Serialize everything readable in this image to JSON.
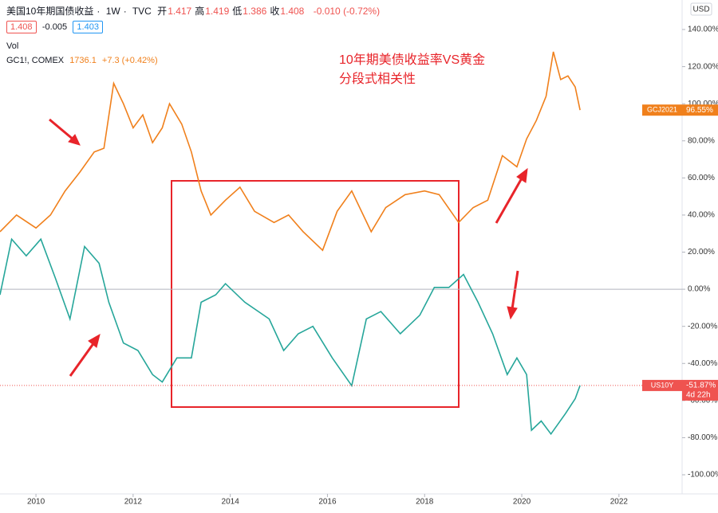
{
  "header": {
    "symbol": "美国10年期国债收益",
    "interval": "1W",
    "source": "TVC",
    "ohlc": [
      {
        "key": "开",
        "value": "1.417"
      },
      {
        "key": "高",
        "value": "1.419"
      },
      {
        "key": "低",
        "value": "1.386"
      },
      {
        "key": "收",
        "value": "1.408"
      }
    ],
    "change": "-0.010 (-0.72%)",
    "bid": "1.408",
    "spread": "-0.005",
    "ask": "1.403",
    "volume": "Vol",
    "compare_symbol": "GC1!, COMEX",
    "compare_price": "1736.1",
    "compare_change": "+7.3 (+0.42%)",
    "currency": "USD"
  },
  "chart_data": {
    "type": "line",
    "annotation": [
      "10年期美债收益率VS黄金",
      "分段式相关性"
    ],
    "xlim": [
      2009.26,
      2023.3
    ],
    "xticks": [
      2010,
      2012,
      2014,
      2016,
      2018,
      2020,
      2022
    ],
    "ylim": [
      -110.3,
      155.9
    ],
    "yticks": [
      {
        "value": -100,
        "label": "-100.00%"
      },
      {
        "value": -80,
        "label": "-80.00%"
      },
      {
        "value": -60,
        "label": "-60.00%"
      },
      {
        "value": -40,
        "label": "-40.00%"
      },
      {
        "value": -20,
        "label": "-20.00%"
      },
      {
        "value": 0,
        "label": "0.00%"
      },
      {
        "value": 20,
        "label": "20.00%"
      },
      {
        "value": 40,
        "label": "40.00%"
      },
      {
        "value": 60,
        "label": "60.00%"
      },
      {
        "value": 80,
        "label": "80.00%"
      },
      {
        "value": 100,
        "label": "100.00%"
      },
      {
        "value": 120,
        "label": "120.00%"
      },
      {
        "value": 140,
        "label": "140.00%"
      }
    ],
    "grid": false,
    "series": [
      {
        "name": "GCJ2021",
        "color": "#f0801c",
        "x": [
          2009.26,
          2009.6,
          2010.0,
          2010.3,
          2010.6,
          2010.9,
          2011.2,
          2011.4,
          2011.6,
          2011.8,
          2012.0,
          2012.2,
          2012.4,
          2012.6,
          2012.75,
          2013.0,
          2013.2,
          2013.4,
          2013.6,
          2013.9,
          2014.2,
          2014.5,
          2014.9,
          2015.2,
          2015.5,
          2015.9,
          2016.2,
          2016.5,
          2016.9,
          2017.2,
          2017.6,
          2018.0,
          2018.3,
          2018.7,
          2019.0,
          2019.3,
          2019.6,
          2019.9,
          2020.1,
          2020.3,
          2020.5,
          2020.65,
          2020.8,
          2020.95,
          2021.1,
          2021.2
        ],
        "values": [
          31,
          40,
          33,
          40,
          53,
          63,
          74,
          76,
          111,
          100,
          87,
          94,
          79,
          87,
          100,
          89,
          74,
          53,
          40,
          48,
          55,
          42,
          36,
          40,
          31,
          21,
          42,
          53,
          31,
          44,
          51,
          53,
          51,
          36,
          44,
          48,
          72,
          66,
          81,
          91,
          104,
          128,
          113,
          115,
          109,
          96.55
        ],
        "value_labels": [
          null,
          null,
          null,
          null,
          null,
          null,
          null,
          null,
          null,
          null,
          null,
          null,
          null,
          null,
          null,
          null,
          null,
          null,
          null,
          null,
          null,
          null,
          null,
          null,
          null,
          null,
          null,
          null,
          null,
          null,
          null,
          null,
          null,
          null,
          null,
          null,
          null,
          null,
          null,
          null,
          null,
          null,
          null,
          null,
          null,
          "96.55%"
        ]
      },
      {
        "name": "US10Y",
        "color": "#26a69a",
        "countdown": "4d 22h",
        "tag_color": "#ef5350",
        "x": [
          2009.26,
          2009.5,
          2009.8,
          2010.1,
          2010.4,
          2010.7,
          2011.0,
          2011.3,
          2011.5,
          2011.8,
          2012.1,
          2012.4,
          2012.6,
          2012.9,
          2013.2,
          2013.4,
          2013.7,
          2013.9,
          2014.3,
          2014.8,
          2015.1,
          2015.4,
          2015.7,
          2016.1,
          2016.5,
          2016.8,
          2017.1,
          2017.5,
          2017.9,
          2018.2,
          2018.5,
          2018.8,
          2019.1,
          2019.4,
          2019.7,
          2019.9,
          2020.1,
          2020.2,
          2020.4,
          2020.6,
          2020.9,
          2021.1,
          2021.2
        ],
        "values": [
          -3,
          27,
          18,
          27,
          6,
          -16,
          23,
          14,
          -7,
          -29,
          -33,
          -46,
          -50,
          -37,
          -37,
          -7,
          -3,
          3,
          -7,
          -16,
          -33,
          -24,
          -20,
          -37,
          -52,
          -16,
          -12,
          -24,
          -14,
          1,
          1,
          8,
          -7,
          -24,
          -46,
          -37,
          -46,
          -76,
          -71,
          -78,
          -67,
          -59,
          -51.87
        ],
        "value_labels": [
          null,
          null,
          null,
          null,
          null,
          null,
          null,
          null,
          null,
          null,
          null,
          null,
          null,
          null,
          null,
          null,
          null,
          null,
          null,
          null,
          null,
          null,
          null,
          null,
          null,
          null,
          null,
          null,
          null,
          null,
          null,
          null,
          null,
          null,
          null,
          null,
          null,
          null,
          null,
          null,
          null,
          null,
          "-51.87%"
        ]
      }
    ]
  }
}
